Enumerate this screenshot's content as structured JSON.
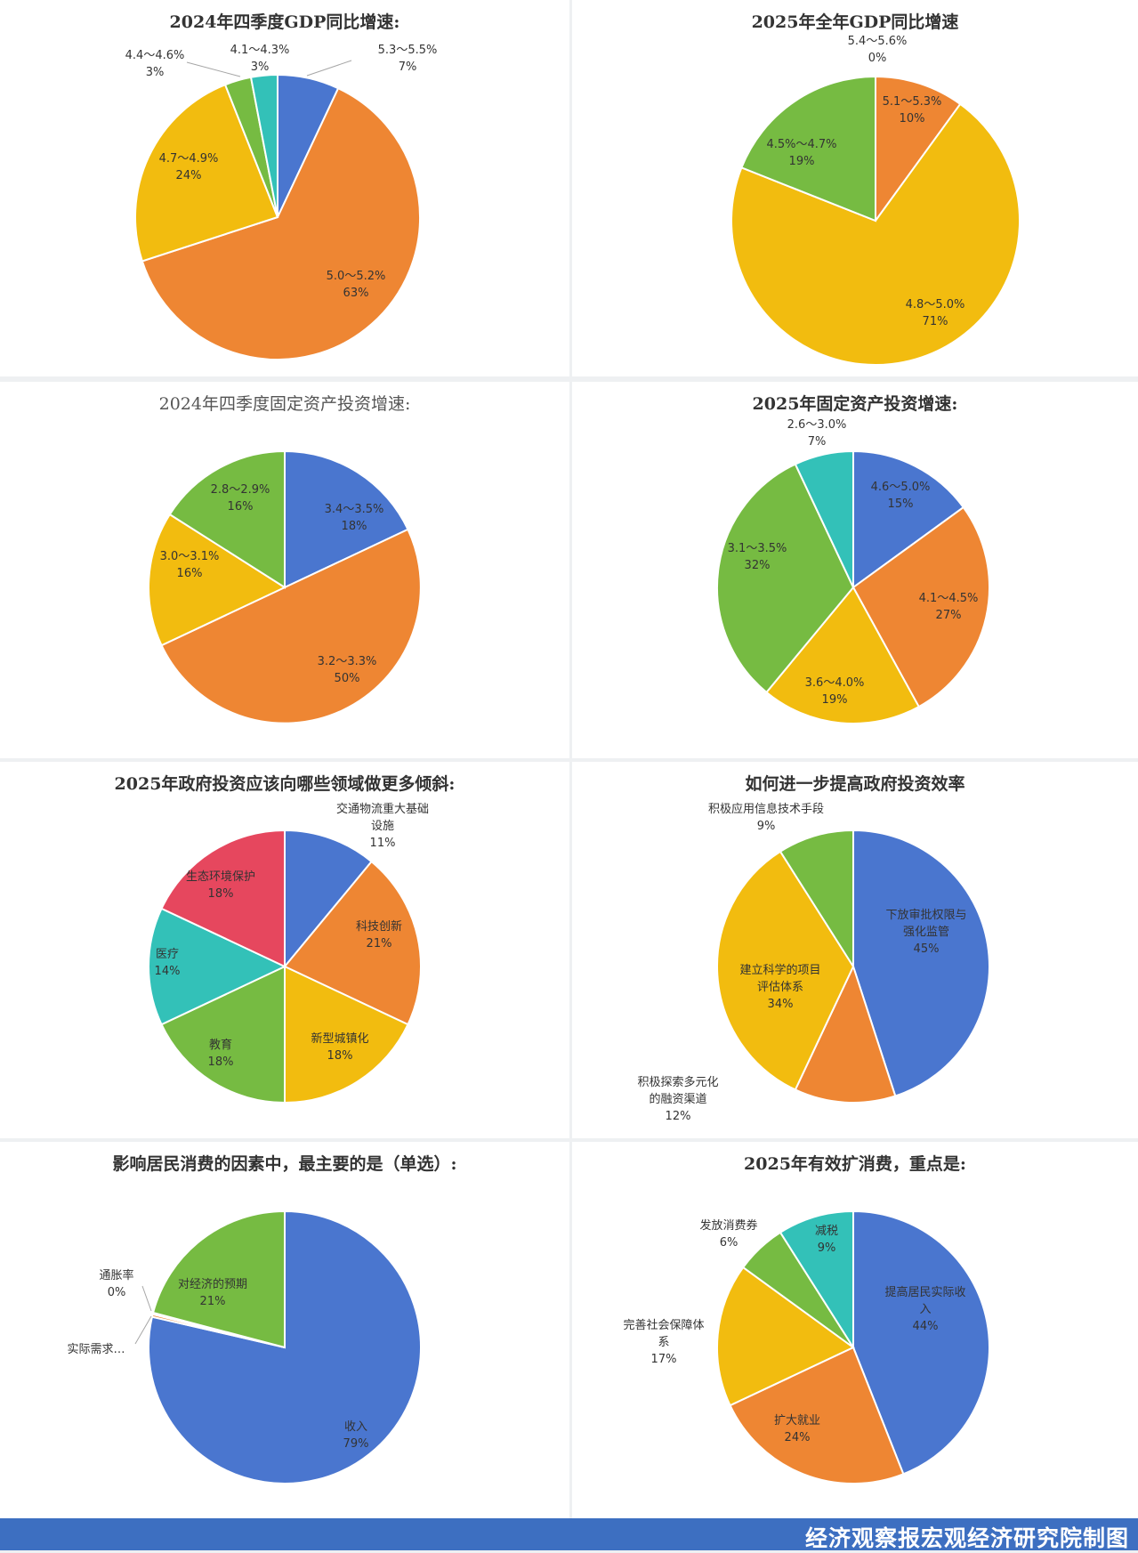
{
  "colors": {
    "blue": "#4a76cf",
    "orange": "#ee8633",
    "yellow": "#f2bc0f",
    "green": "#76bb42",
    "teal": "#33c1b8",
    "red": "#e6475e"
  },
  "footer": {
    "credit": "经济观察报宏观经济研究院制图"
  },
  "chart_data": [
    {
      "type": "pie",
      "title": "2024年四季度GDP同比增速:",
      "slices": [
        {
          "label": "5.3～5.5%",
          "pct": "7%",
          "value": 7,
          "color": "#4a76cf"
        },
        {
          "label": "5.0～5.2%",
          "pct": "63%",
          "value": 63,
          "color": "#ee8633"
        },
        {
          "label": "4.7～4.9%",
          "pct": "24%",
          "value": 24,
          "color": "#f2bc0f"
        },
        {
          "label": "4.4～4.6%",
          "pct": "3%",
          "value": 3,
          "color": "#76bb42"
        },
        {
          "label": "4.1～4.3%",
          "pct": "3%",
          "value": 3,
          "color": "#33c1b8"
        }
      ]
    },
    {
      "type": "pie",
      "title": "2025年全年GDP同比增速",
      "slices": [
        {
          "label": "5.4～5.6%",
          "pct": "0%",
          "value": 0,
          "color": "#4a76cf"
        },
        {
          "label": "5.1～5.3%",
          "pct": "10%",
          "value": 10,
          "color": "#ee8633"
        },
        {
          "label": "4.8～5.0%",
          "pct": "71%",
          "value": 71,
          "color": "#f2bc0f"
        },
        {
          "label": "4.5%～4.7%",
          "pct": "19%",
          "value": 19,
          "color": "#76bb42"
        }
      ]
    },
    {
      "type": "pie",
      "title": "2024年四季度固定资产投资增速:",
      "slices": [
        {
          "label": "3.4～3.5%",
          "pct": "18%",
          "value": 18,
          "color": "#4a76cf"
        },
        {
          "label": "3.2～3.3%",
          "pct": "50%",
          "value": 50,
          "color": "#ee8633"
        },
        {
          "label": "3.0～3.1%",
          "pct": "16%",
          "value": 16,
          "color": "#f2bc0f"
        },
        {
          "label": "2.8～2.9%",
          "pct": "16%",
          "value": 16,
          "color": "#76bb42"
        }
      ]
    },
    {
      "type": "pie",
      "title": "2025年固定资产投资增速:",
      "slices": [
        {
          "label": "4.6～5.0%",
          "pct": "15%",
          "value": 15,
          "color": "#4a76cf"
        },
        {
          "label": "4.1～4.5%",
          "pct": "27%",
          "value": 27,
          "color": "#ee8633"
        },
        {
          "label": "3.6～4.0%",
          "pct": "19%",
          "value": 19,
          "color": "#f2bc0f"
        },
        {
          "label": "3.1～3.5%",
          "pct": "32%",
          "value": 32,
          "color": "#76bb42"
        },
        {
          "label": "2.6～3.0%",
          "pct": "7%",
          "value": 7,
          "color": "#33c1b8"
        }
      ]
    },
    {
      "type": "pie",
      "title": "2025年政府投资应该向哪些领域做更多倾斜:",
      "slices": [
        {
          "label": "交通物流重大基础设施",
          "pct": "11%",
          "value": 11,
          "color": "#4a76cf"
        },
        {
          "label": "科技创新",
          "pct": "21%",
          "value": 21,
          "color": "#ee8633"
        },
        {
          "label": "新型城镇化",
          "pct": "18%",
          "value": 18,
          "color": "#f2bc0f"
        },
        {
          "label": "教育",
          "pct": "18%",
          "value": 18,
          "color": "#76bb42"
        },
        {
          "label": "医疗",
          "pct": "14%",
          "value": 14,
          "color": "#33c1b8"
        },
        {
          "label": "生态环境保护",
          "pct": "18%",
          "value": 18,
          "color": "#e6475e"
        }
      ]
    },
    {
      "type": "pie",
      "title": "如何进一步提高政府投资效率",
      "slices": [
        {
          "label": "下放审批权限与强化监管",
          "pct": "45%",
          "value": 45,
          "color": "#4a76cf"
        },
        {
          "label": "积极探索多元化的融资渠道",
          "pct": "12%",
          "value": 12,
          "color": "#ee8633"
        },
        {
          "label": "建立科学的项目评估体系",
          "pct": "34%",
          "value": 34,
          "color": "#f2bc0f"
        },
        {
          "label": "积极应用信息技术手段",
          "pct": "9%",
          "value": 9,
          "color": "#76bb42"
        }
      ]
    },
    {
      "type": "pie",
      "title": "影响居民消费的因素中，最主要的是（单选）:",
      "slices": [
        {
          "label": "收入",
          "pct": "79%",
          "value": 79,
          "color": "#4a76cf"
        },
        {
          "label": "实际需求…",
          "pct": "",
          "value": 0.3,
          "color": "#ee8633"
        },
        {
          "label": "通胀率",
          "pct": "0%",
          "value": 0.2,
          "color": "#f2bc0f"
        },
        {
          "label": "对经济的预期",
          "pct": "21%",
          "value": 21,
          "color": "#76bb42"
        }
      ]
    },
    {
      "type": "pie",
      "title": "2025年有效扩消费，重点是:",
      "slices": [
        {
          "label": "提高居民实际收入",
          "pct": "44%",
          "value": 44,
          "color": "#4a76cf"
        },
        {
          "label": "扩大就业",
          "pct": "24%",
          "value": 24,
          "color": "#ee8633"
        },
        {
          "label": "完善社会保障体系",
          "pct": "17%",
          "value": 17,
          "color": "#f2bc0f"
        },
        {
          "label": "发放消费券",
          "pct": "6%",
          "value": 6,
          "color": "#76bb42"
        },
        {
          "label": "减税",
          "pct": "9%",
          "value": 9,
          "color": "#33c1b8"
        }
      ]
    }
  ]
}
